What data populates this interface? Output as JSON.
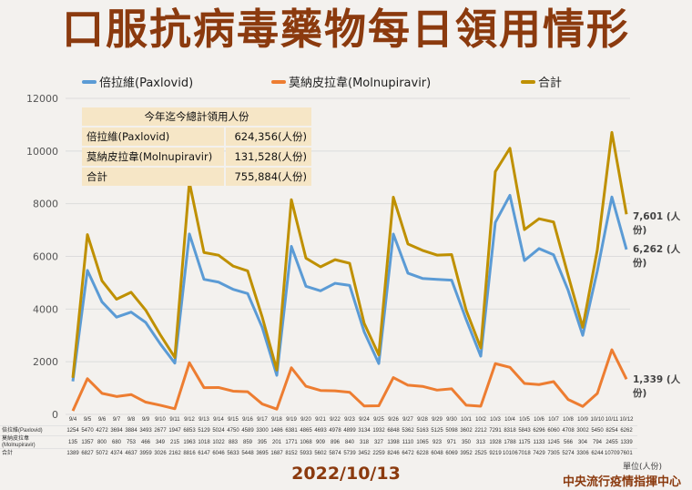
{
  "title": "口服抗病毒藥物每日領用情形",
  "summary": {
    "header": "今年迄今總計領用人份",
    "rows": [
      {
        "label": "倍拉維(Paxlovid)",
        "value": "624,356(人份)"
      },
      {
        "label": "莫納皮拉韋(Molnupiravir)",
        "value": "131,528(人份)"
      },
      {
        "label": "合計",
        "value": "755,884(人份)"
      }
    ]
  },
  "end_labels": {
    "total": "7,601 (人份)",
    "paxlovid": "6,262 (人份)",
    "molnupiravir": "1,339 (人份)"
  },
  "table_labels": [
    "倍拉維(Paxlovid)",
    "莫納皮拉韋(Molnupiravir)",
    "合計"
  ],
  "unit": "單位(人份)",
  "date": "2022/10/13",
  "org": "中央流行疫情指揮中心",
  "colors": {
    "paxlovid": "#5b9bd5",
    "molnupiravir": "#ed7d31",
    "total": "#bf9000"
  },
  "chart_data": {
    "type": "line",
    "title": "口服抗病毒藥物每日領用情形",
    "ylim": [
      0,
      12000
    ],
    "yticks": [
      0,
      2000,
      4000,
      6000,
      8000,
      10000,
      12000
    ],
    "grid": true,
    "legend": "top",
    "categories": [
      "9/4",
      "9/5",
      "9/6",
      "9/7",
      "9/8",
      "9/9",
      "9/10",
      "9/11",
      "9/12",
      "9/13",
      "9/14",
      "9/15",
      "9/16",
      "9/17",
      "9/18",
      "9/19",
      "9/20",
      "9/21",
      "9/22",
      "9/23",
      "9/24",
      "9/25",
      "9/26",
      "9/27",
      "9/28",
      "9/29",
      "9/30",
      "10/1",
      "10/2",
      "10/3",
      "10/4",
      "10/5",
      "10/6",
      "10/7",
      "10/8",
      "10/9",
      "10/10",
      "10/11",
      "10/12"
    ],
    "series": [
      {
        "key": "paxlovid",
        "name": "倍拉維(Paxlovid)",
        "values": [
          1254,
          5470,
          4272,
          3694,
          3884,
          3493,
          2677,
          1947,
          6853,
          5129,
          5024,
          4750,
          4589,
          3300,
          1486,
          6381,
          4865,
          4693,
          4978,
          4899,
          3134,
          1932,
          6848,
          5362,
          5163,
          5125,
          5098,
          3602,
          2212,
          7291,
          8318,
          5843,
          6296,
          6060,
          4708,
          3002,
          5450,
          8254,
          6262
        ]
      },
      {
        "key": "molnupiravir",
        "name": "莫納皮拉韋(Molnupiravir)",
        "values": [
          135,
          1357,
          800,
          680,
          753,
          466,
          349,
          215,
          1963,
          1018,
          1022,
          883,
          859,
          395,
          201,
          1771,
          1068,
          909,
          896,
          840,
          318,
          327,
          1398,
          1110,
          1065,
          923,
          971,
          350,
          313,
          1928,
          1788,
          1175,
          1133,
          1245,
          566,
          304,
          794,
          2455,
          1339
        ]
      },
      {
        "key": "total",
        "name": "合計",
        "values": [
          1389,
          6827,
          5072,
          4374,
          4637,
          3959,
          3026,
          2162,
          8816,
          6147,
          6046,
          5633,
          5448,
          3695,
          1687,
          8152,
          5933,
          5602,
          5874,
          5739,
          3452,
          2259,
          8246,
          6472,
          6228,
          6048,
          6069,
          3952,
          2525,
          9219,
          10106,
          7018,
          7429,
          7305,
          5274,
          3306,
          6244,
          10709,
          7601
        ]
      }
    ]
  }
}
